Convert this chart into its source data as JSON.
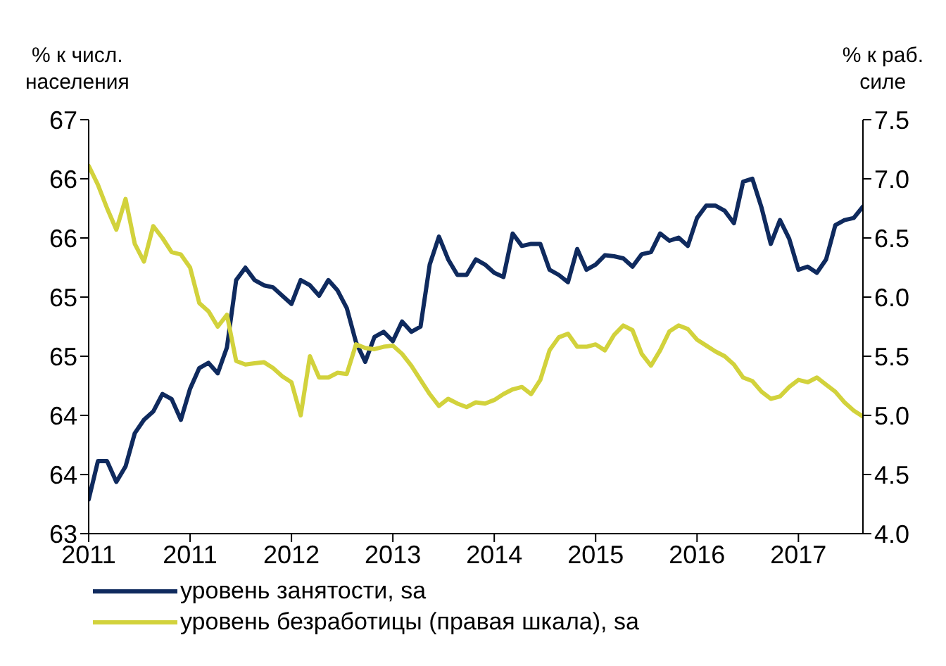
{
  "chart_data": {
    "type": "line",
    "ylabel": "% к числ.\nнаселения",
    "y2label": "% к раб.\nсиле",
    "categories": [
      "2011",
      null,
      null,
      null,
      null,
      null,
      null,
      null,
      null,
      null,
      null,
      "2011",
      null,
      null,
      null,
      null,
      null,
      null,
      null,
      null,
      null,
      null,
      "2012",
      null,
      null,
      null,
      null,
      null,
      null,
      null,
      null,
      null,
      null,
      "2013",
      null,
      null,
      null,
      null,
      null,
      null,
      null,
      null,
      null,
      null,
      "2014",
      null,
      null,
      null,
      null,
      null,
      null,
      null,
      null,
      null,
      null,
      "2015",
      null,
      null,
      null,
      null,
      null,
      null,
      null,
      null,
      null,
      null,
      "2016",
      null,
      null,
      null,
      null,
      null,
      null,
      null,
      null,
      null,
      null,
      "2017",
      null,
      null,
      null,
      null,
      null,
      null,
      null
    ],
    "series": [
      {
        "name": "уровень занятости, sa",
        "color": "#0f2a5e",
        "values": [
          63.33,
          63.7,
          63.7,
          63.5,
          63.65,
          63.97,
          64.1,
          64.18,
          64.35,
          64.3,
          64.1,
          64.4,
          64.6,
          64.65,
          64.55,
          64.8,
          65.45,
          65.57,
          65.45,
          65.4,
          65.38,
          65.3,
          65.22,
          65.45,
          65.4,
          65.3,
          65.45,
          65.35,
          65.18,
          64.85,
          64.66,
          64.9,
          64.95,
          64.86,
          65.05,
          64.95,
          65.0,
          65.6,
          65.87,
          65.65,
          65.5,
          65.5,
          65.65,
          65.6,
          65.52,
          65.48,
          65.9,
          65.78,
          65.8,
          65.8,
          65.55,
          65.5,
          65.43,
          65.75,
          65.55,
          65.6,
          65.69,
          65.68,
          65.66,
          65.58,
          65.7,
          65.72,
          65.9,
          65.83,
          65.86,
          65.78,
          66.05,
          66.17,
          66.17,
          66.12,
          66.0,
          66.4,
          66.43,
          66.15,
          65.8,
          66.03,
          65.85,
          65.55,
          65.58,
          65.52,
          65.65,
          65.98,
          66.03,
          66.05,
          66.16
        ]
      },
      {
        "name": "уровень безработицы (правая шкала), sa",
        "color": "#d2d23c",
        "axis": "y2",
        "values": [
          7.11,
          6.95,
          6.75,
          6.57,
          6.83,
          6.45,
          6.3,
          6.6,
          6.5,
          6.38,
          6.36,
          6.25,
          5.95,
          5.88,
          5.75,
          5.85,
          5.46,
          5.43,
          5.44,
          5.45,
          5.4,
          5.33,
          5.28,
          5.0,
          5.5,
          5.32,
          5.32,
          5.36,
          5.35,
          5.6,
          5.57,
          5.56,
          5.58,
          5.59,
          5.52,
          5.42,
          5.3,
          5.18,
          5.08,
          5.14,
          5.1,
          5.07,
          5.11,
          5.1,
          5.13,
          5.18,
          5.22,
          5.24,
          5.18,
          5.3,
          5.55,
          5.66,
          5.69,
          5.58,
          5.58,
          5.6,
          5.55,
          5.68,
          5.76,
          5.72,
          5.52,
          5.42,
          5.55,
          5.71,
          5.76,
          5.73,
          5.64,
          5.59,
          5.54,
          5.5,
          5.43,
          5.32,
          5.29,
          5.2,
          5.14,
          5.16,
          5.24,
          5.3,
          5.28,
          5.32,
          5.26,
          5.2,
          5.11,
          5.04,
          4.99
        ]
      }
    ],
    "ylim": [
      63,
      67
    ],
    "yticks": [
      63,
      {
        "value": 63.571,
        "label": "64"
      },
      {
        "value": 64.143,
        "label": "64"
      },
      {
        "value": 64.714,
        "label": "65"
      },
      {
        "value": 65.286,
        "label": "65"
      },
      {
        "value": 65.857,
        "label": "66"
      },
      {
        "value": 66.429,
        "label": "66"
      },
      67
    ],
    "y2lim": [
      4,
      7.5
    ],
    "y2ticks": [
      {
        "value": 4,
        "label": "4.0"
      },
      4.5,
      {
        "value": 5,
        "label": "5.0"
      },
      5.5,
      {
        "value": 6,
        "label": "6.0"
      },
      6.5,
      {
        "value": 7,
        "label": "7.0"
      },
      7.5
    ],
    "legend": "bottom"
  }
}
